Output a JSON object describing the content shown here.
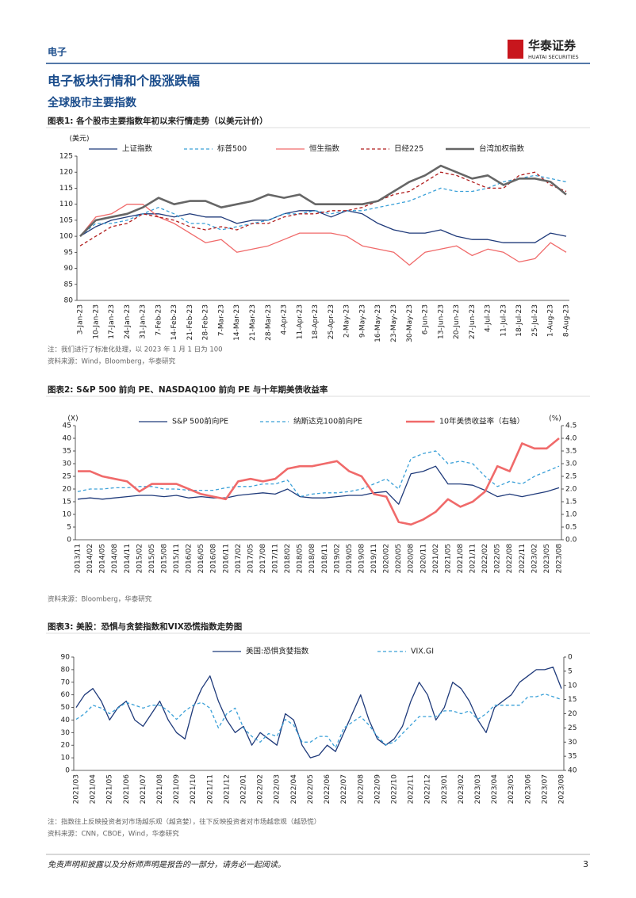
{
  "header": {
    "section": "电子",
    "logo_cn": "华泰证券",
    "logo_en": "HUATAI SECURITIES"
  },
  "headings": {
    "h1": "电子板块行情和个股涨跌幅",
    "h2": "全球股市主要指数"
  },
  "chart_data": [
    {
      "type": "line",
      "title": "图表1: 各个股市主要指数年初以来行情走势（以美元计价）",
      "y_label": "(美元)",
      "categories": [
        "3-Jan-23",
        "10-Jan-23",
        "17-Jan-23",
        "24-Jan-23",
        "31-Jan-23",
        "7-Feb-23",
        "14-Feb-23",
        "21-Feb-23",
        "28-Feb-23",
        "7-Mar-23",
        "14-Mar-23",
        "21-Mar-23",
        "28-Mar-23",
        "4-Apr-23",
        "11-Apr-23",
        "18-Apr-23",
        "25-Apr-23",
        "2-May-23",
        "9-May-23",
        "16-May-23",
        "23-May-23",
        "30-May-23",
        "6-Jun-23",
        "13-Jun-23",
        "20-Jun-23",
        "27-Jun-23",
        "4-Jul-23",
        "11-Jul-23",
        "18-Jul-23",
        "25-Jul-23",
        "1-Aug-23",
        "8-Aug-23"
      ],
      "series": [
        {
          "name": "上证指数",
          "color": "#1f3a7a",
          "line_style": "solid",
          "values": [
            100,
            103,
            105,
            106,
            107,
            107,
            106,
            107,
            106,
            106,
            104,
            105,
            105,
            107,
            108,
            108,
            106,
            108,
            107,
            104,
            102,
            101,
            101,
            102,
            100,
            99,
            99,
            98,
            98,
            98,
            101,
            100
          ]
        },
        {
          "name": "标普500",
          "color": "#3aa0d8",
          "line_style": "dashed",
          "values": [
            100,
            104,
            104,
            105,
            107,
            109,
            107,
            104,
            104,
            102,
            103,
            104,
            105,
            107,
            107,
            108,
            107,
            108,
            108,
            109,
            110,
            111,
            113,
            115,
            114,
            114,
            115,
            117,
            118,
            119,
            118,
            117
          ]
        },
        {
          "name": "恒生指数",
          "color": "#f06a6a",
          "line_style": "solid",
          "values": [
            100,
            106,
            107,
            110,
            110,
            106,
            104,
            101,
            98,
            99,
            95,
            96,
            97,
            99,
            101,
            101,
            101,
            100,
            97,
            96,
            95,
            91,
            95,
            96,
            97,
            94,
            96,
            95,
            92,
            93,
            98,
            95
          ]
        },
        {
          "name": "日经225",
          "color": "#b01c1c",
          "line_style": "dashed",
          "values": [
            97,
            100,
            103,
            104,
            107,
            106,
            105,
            103,
            102,
            103,
            102,
            104,
            104,
            106,
            107,
            107,
            108,
            108,
            109,
            111,
            113,
            114,
            117,
            120,
            119,
            117,
            115,
            115,
            119,
            120,
            116,
            114
          ]
        },
        {
          "name": "台湾加权指数",
          "color": "#666666",
          "line_style": "thick",
          "values": [
            100,
            105,
            106,
            107,
            109,
            112,
            110,
            111,
            111,
            109,
            110,
            111,
            113,
            112,
            113,
            110,
            110,
            110,
            110,
            111,
            114,
            117,
            119,
            122,
            120,
            118,
            119,
            116,
            118,
            118,
            117,
            113
          ]
        }
      ],
      "ylim": [
        80,
        125
      ],
      "yticks": [
        80,
        85,
        90,
        95,
        100,
        105,
        110,
        115,
        120,
        125
      ],
      "notes": [
        "注：我们进行了标准化处理，以 2023 年 1 月 1 日为 100",
        "资料来源：Wind，Bloomberg，华泰研究"
      ]
    },
    {
      "type": "line",
      "title": "图表2: S&P 500 前向 PE、NASDAQ100 前向 PE 与十年期美债收益率",
      "y_label": "(X)",
      "y2_label": "(%)",
      "categories": [
        "2013/11",
        "2014/02",
        "2014/05",
        "2014/08",
        "2014/11",
        "2015/02",
        "2015/05",
        "2015/08",
        "2015/11",
        "2016/02",
        "2016/05",
        "2016/08",
        "2016/11",
        "2017/02",
        "2017/05",
        "2017/08",
        "2017/11",
        "2018/02",
        "2018/05",
        "2018/08",
        "2018/11",
        "2019/02",
        "2019/05",
        "2019/08",
        "2019/11",
        "2020/02",
        "2020/05",
        "2020/08",
        "2020/11",
        "2021/02",
        "2021/05",
        "2021/08",
        "2021/11",
        "2022/02",
        "2022/05",
        "2022/08",
        "2022/11",
        "2023/02",
        "2023/05",
        "2023/08"
      ],
      "series": [
        {
          "name": "S&P 500前向PE",
          "color": "#1f3a7a",
          "line_style": "solid",
          "values": [
            16,
            16.5,
            16,
            16.5,
            17,
            17.5,
            17.5,
            17,
            17.5,
            16.5,
            17,
            16.5,
            16.5,
            17.5,
            18,
            18.5,
            18,
            20,
            17,
            16.5,
            16.5,
            17,
            17.5,
            17.5,
            18.5,
            19,
            14,
            26,
            27,
            29,
            22,
            22,
            21.5,
            19.5,
            17,
            18,
            17,
            18,
            19,
            20.5
          ]
        },
        {
          "name": "纳斯达克100前向PE",
          "color": "#3aa0d8",
          "line_style": "dashed",
          "values": [
            19,
            20,
            20,
            20.5,
            20.5,
            21,
            21,
            20,
            20,
            19.5,
            19.5,
            19.5,
            20.5,
            21,
            21,
            22,
            22,
            23.5,
            17,
            18,
            18.5,
            18.5,
            19,
            20,
            22,
            24,
            20,
            32,
            34,
            35,
            30,
            31,
            30,
            25,
            21,
            23,
            22,
            25,
            27,
            29
          ]
        },
        {
          "name": "10年美债收益率（右轴）",
          "color": "#f06a6a",
          "line_style": "thick",
          "axis": "y2",
          "values": [
            2.7,
            2.7,
            2.5,
            2.4,
            2.3,
            1.9,
            2.2,
            2.2,
            2.2,
            2.0,
            1.8,
            1.7,
            1.6,
            2.3,
            2.4,
            2.3,
            2.4,
            2.8,
            2.9,
            2.9,
            3.0,
            3.1,
            2.7,
            2.5,
            1.8,
            1.7,
            0.7,
            0.6,
            0.8,
            1.1,
            1.6,
            1.3,
            1.5,
            1.9,
            2.9,
            2.7,
            3.8,
            3.6,
            3.6,
            4.0
          ]
        }
      ],
      "ylim": [
        0,
        45
      ],
      "yticks": [
        0,
        5,
        10,
        15,
        20,
        25,
        30,
        35,
        40,
        45
      ],
      "y2lim": [
        0,
        4.5
      ],
      "y2ticks": [
        {
          "value": 0,
          "label": "0.0"
        },
        0.5,
        {
          "value": 1,
          "label": "1.0"
        },
        1.5,
        {
          "value": 2,
          "label": "2.0"
        },
        2.5,
        {
          "value": 3,
          "label": "3.0"
        },
        3.5,
        {
          "value": 4,
          "label": "4.0"
        },
        4.5
      ],
      "notes": [
        "资料来源：Bloomberg，华泰研究"
      ]
    },
    {
      "type": "line",
      "title": "图表3: 美股：恐惧与贪婪指数和VIX恐慌指数走势图",
      "categories": [
        "2021/03",
        null,
        "2021/04",
        null,
        "2021/05",
        null,
        "2021/06",
        null,
        "2021/07",
        null,
        "2021/08",
        null,
        "2021/09",
        null,
        "2021/10",
        null,
        "2021/11",
        null,
        "2021/12",
        null,
        "2022/01",
        null,
        "2022/02",
        null,
        "2022/03",
        null,
        "2022/04",
        null,
        "2022/05",
        null,
        "2022/06",
        null,
        "2022/07",
        null,
        "2022/08",
        null,
        "2022/09",
        null,
        "2022/10",
        null,
        "2022/11",
        null,
        "2022/12",
        null,
        "2023/01",
        null,
        "2023/02",
        null,
        "2023/03",
        null,
        "2023/04",
        null,
        "2023/05",
        null,
        "2023/06",
        null,
        "2023/07",
        null,
        "2023/08"
      ],
      "series": [
        {
          "name": "美国:恐惧贪婪指数",
          "color": "#1f3a7a",
          "line_style": "solid",
          "values": [
            50,
            60,
            65,
            55,
            40,
            50,
            55,
            40,
            35,
            45,
            55,
            40,
            30,
            25,
            50,
            65,
            75,
            55,
            40,
            30,
            35,
            20,
            30,
            25,
            20,
            45,
            40,
            20,
            10,
            12,
            20,
            15,
            30,
            45,
            60,
            40,
            25,
            20,
            25,
            35,
            55,
            70,
            60,
            40,
            50,
            70,
            65,
            55,
            40,
            30,
            50,
            55,
            60,
            70,
            75,
            80,
            80,
            82,
            65
          ]
        },
        {
          "name": "VIX.GI",
          "color": "#3aa0d8",
          "line_style": "dashed",
          "axis": "y2",
          "values": [
            22,
            20,
            17,
            18,
            20,
            18,
            16,
            17,
            18,
            17,
            17,
            19,
            22,
            19,
            17,
            16,
            18,
            25,
            20,
            18,
            25,
            28,
            30,
            27,
            28,
            22,
            24,
            30,
            30,
            28,
            28,
            32,
            25,
            23,
            21,
            24,
            28,
            31,
            30,
            27,
            24,
            21,
            21,
            21,
            19,
            19,
            20,
            19,
            22,
            20,
            17,
            17,
            17,
            17,
            14,
            14,
            13,
            14,
            15
          ]
        }
      ],
      "ylim": [
        0,
        90
      ],
      "yticks": [
        0,
        10,
        20,
        30,
        40,
        50,
        60,
        70,
        80,
        90
      ],
      "y2lim": [
        0,
        40
      ],
      "y2_inverted": true,
      "y2ticks": [
        0,
        5,
        10,
        15,
        20,
        25,
        30,
        35,
        40
      ],
      "notes": [
        "注：指数往上反映投资者对市场越乐观（越贪婪），往下反映投资者对市场越悲观（越恐慌）",
        "资料来源：CNN，CBOE，Wind，华泰研究"
      ]
    }
  ],
  "footer": {
    "disclaimer": "免责声明和披露以及分析师声明是报告的一部分，请务必一起阅读。",
    "page": "3"
  }
}
